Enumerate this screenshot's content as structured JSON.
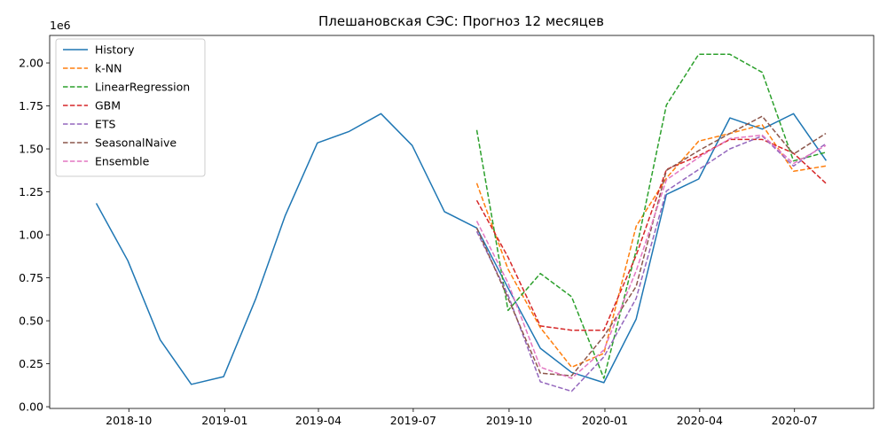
{
  "chart_data": {
    "type": "line",
    "title": "Плешановская СЭС: Прогноз 12 месяцев",
    "xlabel": "",
    "ylabel": "",
    "y_offset_label": "1e6",
    "y_scale_multiplier": 1000000,
    "xlim": [
      "2018-07-17",
      "2020-09-15"
    ],
    "ylim": [
      -10000,
      2160000
    ],
    "x_ticks": [
      {
        "date": "2018-10-01",
        "label": "2018-10"
      },
      {
        "date": "2019-01-01",
        "label": "2019-01"
      },
      {
        "date": "2019-04-01",
        "label": "2019-04"
      },
      {
        "date": "2019-07-01",
        "label": "2019-07"
      },
      {
        "date": "2019-10-01",
        "label": "2019-10"
      },
      {
        "date": "2020-01-01",
        "label": "2020-01"
      },
      {
        "date": "2020-04-01",
        "label": "2020-04"
      },
      {
        "date": "2020-07-01",
        "label": "2020-07"
      }
    ],
    "y_ticks": [
      {
        "value": 0,
        "label": "0.00"
      },
      {
        "value": 250000,
        "label": "0.25"
      },
      {
        "value": 500000,
        "label": "0.50"
      },
      {
        "value": 750000,
        "label": "0.75"
      },
      {
        "value": 1000000,
        "label": "1.00"
      },
      {
        "value": 1250000,
        "label": "1.25"
      },
      {
        "value": 1500000,
        "label": "1.50"
      },
      {
        "value": 1750000,
        "label": "1.75"
      },
      {
        "value": 2000000,
        "label": "2.00"
      }
    ],
    "grid": false,
    "legend_position": "top-left",
    "series": [
      {
        "name": "History",
        "color": "#1f77b4",
        "style": "solid",
        "x": [
          "2018-08-31",
          "2018-09-30",
          "2018-10-31",
          "2018-11-30",
          "2018-12-31",
          "2019-01-31",
          "2019-02-28",
          "2019-03-31",
          "2019-04-30",
          "2019-05-31",
          "2019-06-30",
          "2019-07-31",
          "2019-08-31",
          "2019-09-30",
          "2019-10-31",
          "2019-11-30",
          "2019-12-31",
          "2020-01-31",
          "2020-02-29",
          "2020-03-31",
          "2020-04-30",
          "2020-05-31",
          "2020-06-30",
          "2020-07-31"
        ],
        "values": [
          1180000,
          850000,
          390000,
          130000,
          175000,
          630000,
          1110000,
          1535000,
          1600000,
          1705000,
          1520000,
          1135000,
          1040000,
          690000,
          340000,
          200000,
          140000,
          510000,
          1235000,
          1325000,
          1680000,
          1615000,
          1705000,
          1435000
        ]
      },
      {
        "name": "k-NN",
        "color": "#ff7f0e",
        "style": "dashed",
        "x": [
          "2019-08-31",
          "2019-09-30",
          "2019-10-31",
          "2019-11-30",
          "2019-12-31",
          "2020-01-31",
          "2020-02-29",
          "2020-03-31",
          "2020-04-30",
          "2020-05-31",
          "2020-06-30",
          "2020-07-31"
        ],
        "values": [
          1300000,
          800000,
          460000,
          230000,
          310000,
          1050000,
          1330000,
          1545000,
          1590000,
          1640000,
          1370000,
          1400000
        ]
      },
      {
        "name": "LinearRegression",
        "color": "#2ca02c",
        "style": "dashed",
        "x": [
          "2019-08-31",
          "2019-09-30",
          "2019-10-31",
          "2019-11-30",
          "2019-12-31",
          "2020-01-31",
          "2020-02-29",
          "2020-03-31",
          "2020-04-30",
          "2020-05-31",
          "2020-06-30",
          "2020-07-31"
        ],
        "values": [
          1610000,
          560000,
          775000,
          640000,
          165000,
          910000,
          1755000,
          2050000,
          2050000,
          1945000,
          1430000,
          1480000
        ]
      },
      {
        "name": "GBM",
        "color": "#d62728",
        "style": "dashed",
        "x": [
          "2019-08-31",
          "2019-09-30",
          "2019-10-31",
          "2019-11-30",
          "2019-12-31",
          "2020-01-31",
          "2020-02-29",
          "2020-03-31",
          "2020-04-30",
          "2020-05-31",
          "2020-06-30",
          "2020-07-31"
        ],
        "values": [
          1200000,
          870000,
          470000,
          445000,
          445000,
          880000,
          1380000,
          1460000,
          1555000,
          1555000,
          1475000,
          1300000
        ]
      },
      {
        "name": "ETS",
        "color": "#9467bd",
        "style": "dashed",
        "x": [
          "2019-08-31",
          "2019-09-30",
          "2019-10-31",
          "2019-11-30",
          "2019-12-31",
          "2020-01-31",
          "2020-02-29",
          "2020-03-31",
          "2020-04-30",
          "2020-05-31",
          "2020-06-30",
          "2020-07-31"
        ],
        "values": [
          1020000,
          650000,
          145000,
          90000,
          290000,
          630000,
          1255000,
          1380000,
          1500000,
          1575000,
          1400000,
          1530000
        ]
      },
      {
        "name": "SeasonalNaive",
        "color": "#8c564b",
        "style": "dashed",
        "x": [
          "2019-08-31",
          "2019-09-30",
          "2019-10-31",
          "2019-11-30",
          "2019-12-31",
          "2020-01-31",
          "2020-02-29",
          "2020-03-31",
          "2020-04-30",
          "2020-05-31",
          "2020-06-30",
          "2020-07-31"
        ],
        "values": [
          1040000,
          630000,
          195000,
          180000,
          410000,
          700000,
          1375000,
          1490000,
          1590000,
          1690000,
          1470000,
          1590000
        ]
      },
      {
        "name": "Ensemble",
        "color": "#e377c2",
        "style": "dashed",
        "x": [
          "2019-08-31",
          "2019-09-30",
          "2019-10-31",
          "2019-11-30",
          "2019-12-31",
          "2020-01-31",
          "2020-02-29",
          "2020-03-31",
          "2020-04-30",
          "2020-05-31",
          "2020-06-30",
          "2020-07-31"
        ],
        "values": [
          1080000,
          720000,
          230000,
          165000,
          330000,
          790000,
          1320000,
          1450000,
          1560000,
          1580000,
          1415000,
          1520000
        ]
      }
    ]
  }
}
